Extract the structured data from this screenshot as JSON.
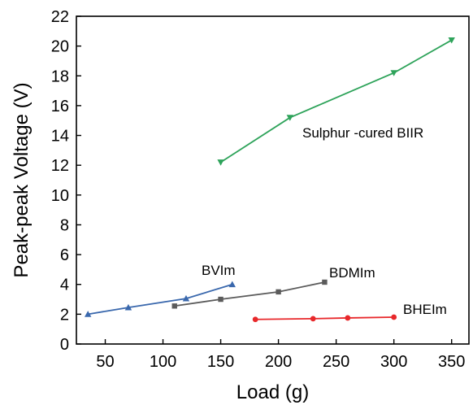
{
  "chart_data": {
    "type": "line",
    "xlabel": "Load (g)",
    "ylabel": "Peak-peak Voltage (V)",
    "xlim": [
      25,
      365
    ],
    "ylim": [
      0,
      22
    ],
    "xticks": [
      50,
      100,
      150,
      200,
      250,
      300,
      350
    ],
    "yticks": [
      0,
      2,
      4,
      6,
      8,
      10,
      12,
      14,
      16,
      18,
      20,
      22
    ],
    "grid": false,
    "series": [
      {
        "name": "Sulphur -cured BIIR",
        "color": "#2ea35a",
        "marker": "triangle-down",
        "x": [
          150,
          210,
          300,
          350
        ],
        "y": [
          12.2,
          15.2,
          18.2,
          20.4
        ]
      },
      {
        "name": "BVIm",
        "color": "#3a68ad",
        "marker": "triangle-up",
        "x": [
          35,
          70,
          120,
          160
        ],
        "y": [
          2.0,
          2.45,
          3.05,
          4.0
        ]
      },
      {
        "name": "BDMIm",
        "color": "#5b5b5b",
        "marker": "square",
        "x": [
          110,
          150,
          200,
          240
        ],
        "y": [
          2.55,
          3.0,
          3.5,
          4.15
        ]
      },
      {
        "name": "BHEIm",
        "color": "#e8282b",
        "marker": "circle",
        "x": [
          180,
          230,
          260,
          300
        ],
        "y": [
          1.65,
          1.7,
          1.75,
          1.8
        ]
      }
    ]
  }
}
